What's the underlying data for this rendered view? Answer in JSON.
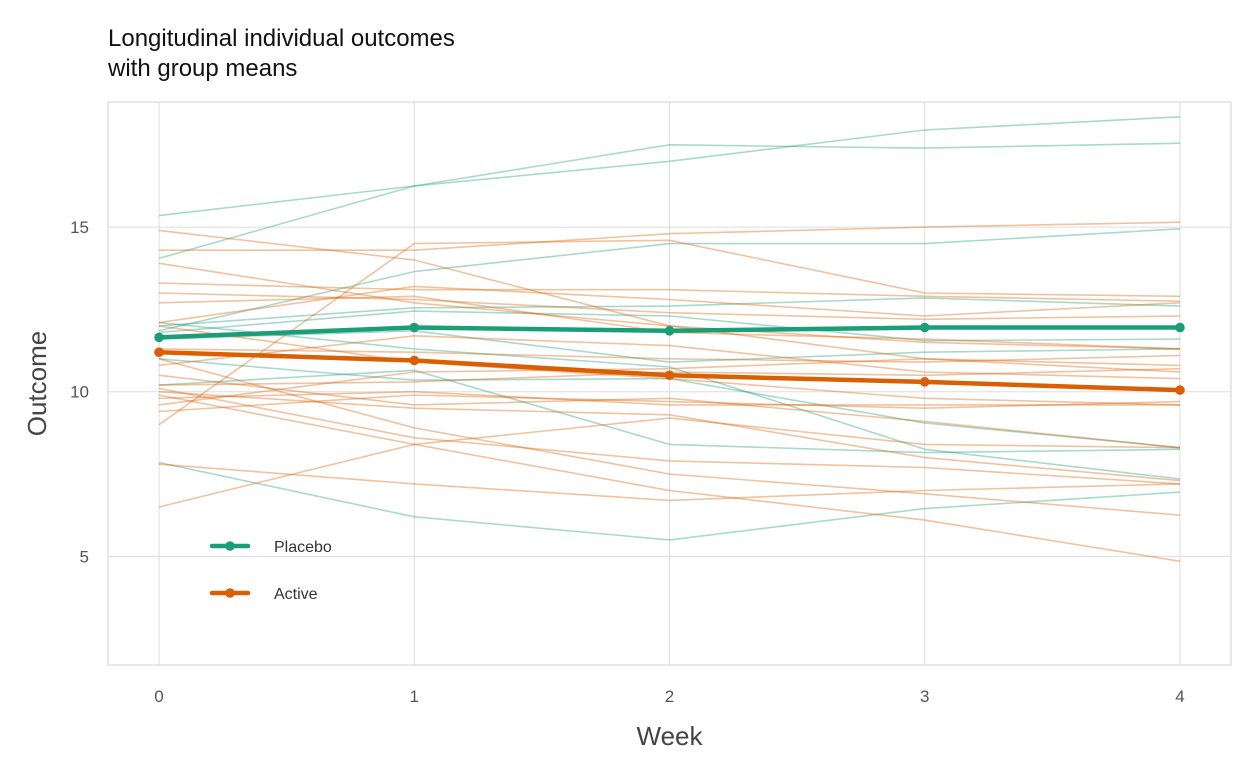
{
  "chart_data": {
    "type": "line",
    "title_lines": [
      "Longitudinal individual outcomes",
      "with group means"
    ],
    "xlabel": "Week",
    "ylabel": "Outcome",
    "x": [
      0,
      1,
      2,
      3,
      4
    ],
    "xlim": [
      -0.2,
      4.2
    ],
    "ylim": [
      1.7,
      18.8
    ],
    "x_ticks": [
      0,
      1,
      2,
      3,
      4
    ],
    "y_ticks": [
      5,
      10,
      15
    ],
    "grid": true,
    "legend_position": "bottom-left",
    "colors": {
      "Placebo": "#1b9e77",
      "Active": "#d95f02",
      "grid": "#dddddd",
      "panel_border": "#d0d0d0"
    },
    "series": [
      {
        "name": "Placebo",
        "role": "mean",
        "values": [
          11.65,
          11.95,
          11.85,
          11.95,
          11.95
        ]
      },
      {
        "name": "Active",
        "role": "mean",
        "values": [
          11.2,
          10.95,
          10.5,
          10.3,
          10.05
        ]
      }
    ],
    "individuals": {
      "Placebo": [
        [
          15.35,
          16.25,
          17.5,
          17.4,
          17.55
        ],
        [
          14.05,
          16.25,
          17.0,
          17.95,
          18.35
        ],
        [
          11.85,
          13.65,
          14.5,
          14.5,
          14.95
        ],
        [
          12.0,
          12.55,
          12.6,
          12.85,
          12.6
        ],
        [
          11.8,
          12.45,
          12.3,
          11.55,
          11.6
        ],
        [
          11.6,
          11.85,
          10.9,
          11.2,
          11.3
        ],
        [
          11.0,
          10.35,
          10.4,
          9.05,
          8.3
        ],
        [
          10.2,
          10.65,
          8.4,
          8.15,
          8.25
        ],
        [
          12.1,
          11.3,
          10.75,
          8.25,
          7.35
        ],
        [
          7.85,
          6.2,
          5.5,
          6.45,
          6.95
        ]
      ],
      "Active": [
        [
          14.9,
          14.0,
          12.0,
          11.5,
          11.3
        ],
        [
          14.3,
          14.3,
          14.8,
          15.0,
          15.15
        ],
        [
          13.9,
          12.7,
          12.0,
          11.0,
          10.8
        ],
        [
          13.3,
          13.1,
          13.1,
          12.9,
          12.75
        ],
        [
          13.0,
          12.8,
          12.4,
          12.2,
          12.3
        ],
        [
          12.7,
          12.9,
          11.8,
          11.6,
          11.3
        ],
        [
          12.1,
          13.2,
          12.8,
          12.3,
          12.7
        ],
        [
          12.0,
          10.9,
          10.4,
          9.8,
          9.6
        ],
        [
          11.3,
          11.2,
          11.0,
          10.9,
          11.1
        ],
        [
          10.8,
          11.7,
          11.4,
          10.6,
          10.4
        ],
        [
          10.5,
          9.6,
          9.8,
          9.1,
          8.3
        ],
        [
          10.2,
          10.3,
          10.6,
          10.5,
          10.7
        ],
        [
          10.0,
          9.5,
          9.3,
          8.0,
          7.3
        ],
        [
          9.8,
          10.0,
          9.6,
          9.6,
          9.6
        ],
        [
          9.6,
          10.6,
          10.7,
          11.0,
          10.6
        ],
        [
          9.4,
          9.9,
          9.7,
          9.5,
          9.7
        ],
        [
          9.0,
          14.5,
          14.6,
          13.0,
          12.9
        ],
        [
          10.1,
          8.6,
          7.9,
          7.7,
          7.2
        ],
        [
          9.9,
          8.4,
          9.2,
          8.4,
          8.3
        ],
        [
          7.8,
          7.2,
          6.7,
          7.0,
          7.2
        ],
        [
          6.5,
          8.4,
          7.0,
          6.1,
          4.85
        ],
        [
          11.0,
          8.9,
          7.5,
          6.9,
          6.25
        ]
      ]
    },
    "legend": [
      {
        "name": "Placebo",
        "label": "Placebo"
      },
      {
        "name": "Active",
        "label": "Active"
      }
    ]
  }
}
